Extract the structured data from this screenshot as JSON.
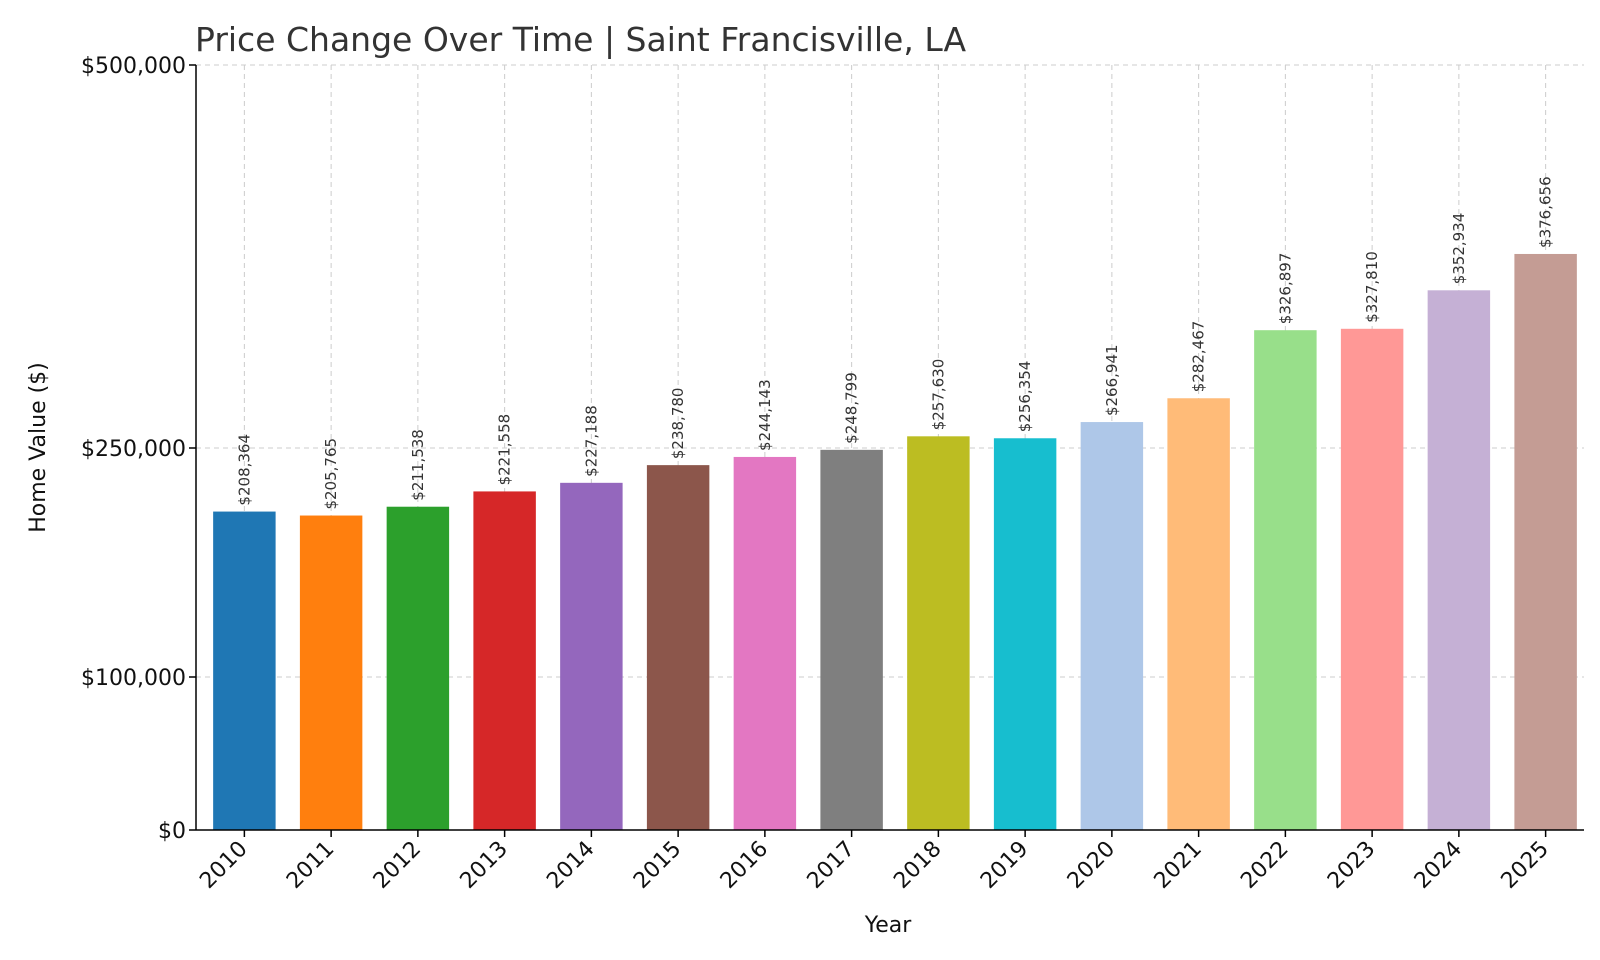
{
  "chart_data": {
    "type": "bar",
    "title": "Price Change Over Time | Saint Francisville, LA",
    "xlabel": "Year",
    "ylabel": "Home Value ($)",
    "categories": [
      "2010",
      "2011",
      "2012",
      "2013",
      "2014",
      "2015",
      "2016",
      "2017",
      "2018",
      "2019",
      "2020",
      "2021",
      "2022",
      "2023",
      "2024",
      "2025"
    ],
    "values": [
      208364,
      205765,
      211538,
      221558,
      227188,
      238780,
      244143,
      248799,
      257630,
      256354,
      266941,
      282467,
      326897,
      327810,
      352934,
      376656
    ],
    "data_labels": [
      "$208,364",
      "$205,765",
      "$211,538",
      "$221,558",
      "$227,188",
      "$238,780",
      "$244,143",
      "$248,799",
      "$257,630",
      "$256,354",
      "$266,941",
      "$282,467",
      "$326,897",
      "$327,810",
      "$352,934",
      "$376,656"
    ],
    "yticks": [
      0,
      100000,
      250000,
      500000
    ],
    "ytick_labels": [
      "$0",
      "$100,000",
      "$250,000",
      "$500,000"
    ],
    "ylim": [
      0,
      500000
    ],
    "grid": true,
    "colors": [
      "#1f77b4",
      "#ff7f0e",
      "#2ca02c",
      "#d62728",
      "#9467bd",
      "#8c564b",
      "#e377c2",
      "#7f7f7f",
      "#bcbd22",
      "#17becf",
      "#aec7e8",
      "#ffbb78",
      "#98df8a",
      "#ff9896",
      "#c5b0d5",
      "#c49c94"
    ]
  }
}
